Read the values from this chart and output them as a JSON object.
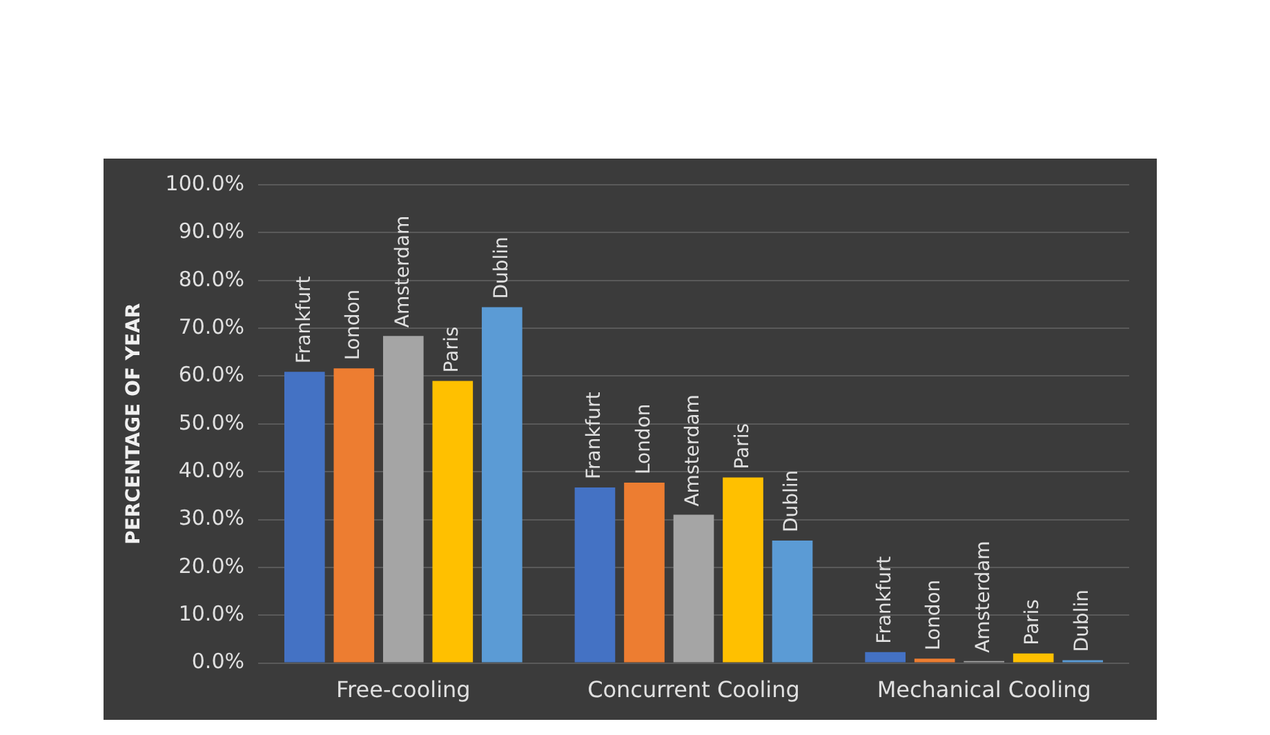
{
  "chart_data": {
    "type": "bar",
    "ylabel": "PERCENTAGE OF YEAR",
    "categories": [
      "Free-cooling",
      "Concurrent Cooling",
      "Mechanical Cooling"
    ],
    "series": [
      {
        "name": "Frankfurt",
        "color": "#4472c4",
        "values": [
          60.9,
          36.7,
          2.3
        ]
      },
      {
        "name": "London",
        "color": "#ed7d31",
        "values": [
          61.6,
          37.7,
          0.9
        ]
      },
      {
        "name": "Amsterdam",
        "color": "#a5a5a5",
        "values": [
          68.4,
          31.0,
          0.4
        ]
      },
      {
        "name": "Paris",
        "color": "#ffc000",
        "values": [
          59.0,
          38.8,
          2.0
        ]
      },
      {
        "name": "Dublin",
        "color": "#5b9bd5",
        "values": [
          74.4,
          25.6,
          0.6
        ]
      }
    ],
    "ylim": [
      0,
      100
    ],
    "yticks": [
      {
        "value": 0,
        "label": "0.0%"
      },
      {
        "value": 10,
        "label": "10.0%"
      },
      {
        "value": 20,
        "label": "20.0%"
      },
      {
        "value": 30,
        "label": "30.0%"
      },
      {
        "value": 40,
        "label": "40.0%"
      },
      {
        "value": 50,
        "label": "50.0%"
      },
      {
        "value": 60,
        "label": "60.0%"
      },
      {
        "value": 70,
        "label": "70.0%"
      },
      {
        "value": 80,
        "label": "80.0%"
      },
      {
        "value": 90,
        "label": "90.0%"
      },
      {
        "value": 100,
        "label": "100.0%"
      }
    ],
    "grid": "y",
    "legend": false
  }
}
